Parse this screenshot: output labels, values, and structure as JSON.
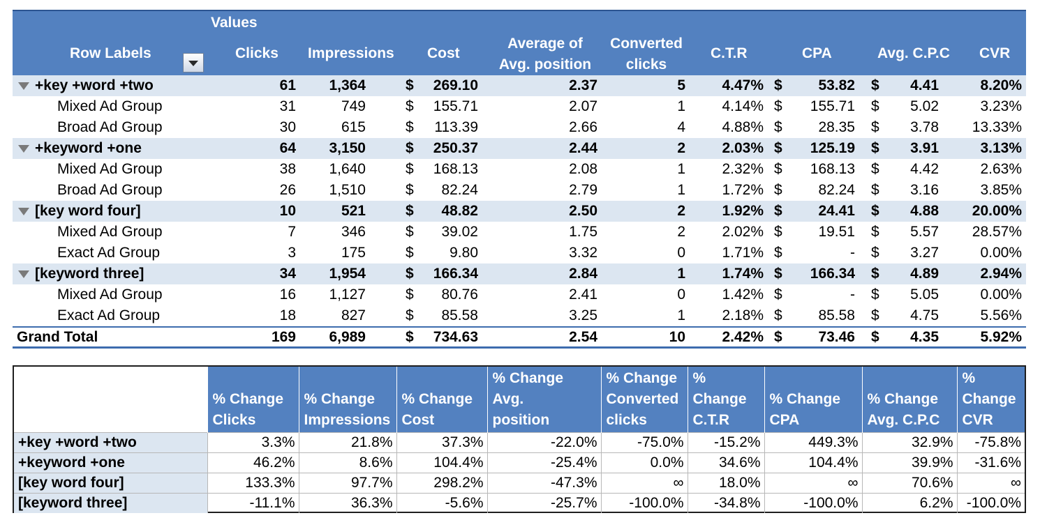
{
  "pivot": {
    "header": {
      "values_caption": "Values",
      "row_labels": "Row Labels",
      "clicks": "Clicks",
      "impressions": "Impressions",
      "cost": "Cost",
      "avg_pos_1": "Average of",
      "avg_pos_2": "Avg. position",
      "conv_1": "Converted",
      "conv_2": "clicks",
      "ctr": "C.T.R",
      "cpa": "CPA",
      "cpc": "Avg. C.P.C",
      "cvr": "CVR"
    },
    "currency": "$",
    "rows": [
      {
        "kind": "group",
        "label": "+key +word +two",
        "clicks": "61",
        "impressions": "1,364",
        "cost": "269.10",
        "avg_position": "2.37",
        "converted": "5",
        "ctr": "4.47%",
        "cpa": "53.82",
        "cpc": "4.41",
        "cvr": "8.20%"
      },
      {
        "kind": "child",
        "label": "Mixed Ad Group",
        "clicks": "31",
        "impressions": "749",
        "cost": "155.71",
        "avg_position": "2.07",
        "converted": "1",
        "ctr": "4.14%",
        "cpa": "155.71",
        "cpc": "5.02",
        "cvr": "3.23%"
      },
      {
        "kind": "child",
        "label": "Broad Ad Group",
        "clicks": "30",
        "impressions": "615",
        "cost": "113.39",
        "avg_position": "2.66",
        "converted": "4",
        "ctr": "4.88%",
        "cpa": "28.35",
        "cpc": "3.78",
        "cvr": "13.33%"
      },
      {
        "kind": "group",
        "label": "+keyword +one",
        "clicks": "64",
        "impressions": "3,150",
        "cost": "250.37",
        "avg_position": "2.44",
        "converted": "2",
        "ctr": "2.03%",
        "cpa": "125.19",
        "cpc": "3.91",
        "cvr": "3.13%"
      },
      {
        "kind": "child",
        "label": "Mixed Ad Group",
        "clicks": "38",
        "impressions": "1,640",
        "cost": "168.13",
        "avg_position": "2.08",
        "converted": "1",
        "ctr": "2.32%",
        "cpa": "168.13",
        "cpc": "4.42",
        "cvr": "2.63%"
      },
      {
        "kind": "child",
        "label": "Broad Ad Group",
        "clicks": "26",
        "impressions": "1,510",
        "cost": "82.24",
        "avg_position": "2.79",
        "converted": "1",
        "ctr": "1.72%",
        "cpa": "82.24",
        "cpc": "3.16",
        "cvr": "3.85%"
      },
      {
        "kind": "group",
        "label": "[key word four]",
        "clicks": "10",
        "impressions": "521",
        "cost": "48.82",
        "avg_position": "2.50",
        "converted": "2",
        "ctr": "1.92%",
        "cpa": "24.41",
        "cpc": "4.88",
        "cvr": "20.00%"
      },
      {
        "kind": "child",
        "label": "Mixed Ad Group",
        "clicks": "7",
        "impressions": "346",
        "cost": "39.02",
        "avg_position": "1.75",
        "converted": "2",
        "ctr": "2.02%",
        "cpa": "19.51",
        "cpc": "5.57",
        "cvr": "28.57%"
      },
      {
        "kind": "child",
        "label": "Exact Ad Group",
        "clicks": "3",
        "impressions": "175",
        "cost": "9.80",
        "avg_position": "3.32",
        "converted": "0",
        "ctr": "1.71%",
        "cpa": "-",
        "cpc": "3.27",
        "cvr": "0.00%"
      },
      {
        "kind": "group",
        "label": "[keyword three]",
        "clicks": "34",
        "impressions": "1,954",
        "cost": "166.34",
        "avg_position": "2.84",
        "converted": "1",
        "ctr": "1.74%",
        "cpa": "166.34",
        "cpc": "4.89",
        "cvr": "2.94%"
      },
      {
        "kind": "child",
        "label": "Mixed Ad Group",
        "clicks": "16",
        "impressions": "1,127",
        "cost": "80.76",
        "avg_position": "2.41",
        "converted": "0",
        "ctr": "1.42%",
        "cpa": "-",
        "cpc": "5.05",
        "cvr": "0.00%"
      },
      {
        "kind": "child",
        "label": "Exact Ad Group",
        "clicks": "18",
        "impressions": "827",
        "cost": "85.58",
        "avg_position": "3.25",
        "converted": "1",
        "ctr": "2.18%",
        "cpa": "85.58",
        "cpc": "4.75",
        "cvr": "5.56%"
      },
      {
        "kind": "total",
        "label": "Grand Total",
        "clicks": "169",
        "impressions": "6,989",
        "cost": "734.63",
        "avg_position": "2.54",
        "converted": "10",
        "ctr": "2.42%",
        "cpa": "73.46",
        "cpc": "4.35",
        "cvr": "5.92%"
      }
    ]
  },
  "change_table": {
    "headers": [
      [
        "% Change",
        "Clicks"
      ],
      [
        "% Change",
        "Impressions"
      ],
      [
        "% Change",
        "Cost"
      ],
      [
        "% Change Avg.",
        "position"
      ],
      [
        "% Change",
        "Converted",
        "clicks"
      ],
      [
        "% Change",
        "C.T.R"
      ],
      [
        "% Change",
        "CPA"
      ],
      [
        "% Change",
        "Avg. C.P.C"
      ],
      [
        "%",
        "Change",
        "CVR"
      ]
    ],
    "rows": [
      {
        "label": "+key +word +two",
        "values": [
          "3.3%",
          "21.8%",
          "37.3%",
          "-22.0%",
          "-75.0%",
          "-15.2%",
          "449.3%",
          "32.9%",
          "-75.8%"
        ]
      },
      {
        "label": "+keyword +one",
        "values": [
          "46.2%",
          "8.6%",
          "104.4%",
          "-25.4%",
          "0.0%",
          "34.6%",
          "104.4%",
          "39.9%",
          "-31.6%"
        ]
      },
      {
        "label": "[key word four]",
        "values": [
          "133.3%",
          "97.7%",
          "298.2%",
          "-47.3%",
          "∞",
          "18.0%",
          "∞",
          "70.6%",
          "∞"
        ]
      },
      {
        "label": "[keyword three]",
        "values": [
          "-11.1%",
          "36.3%",
          "-5.6%",
          "-25.7%",
          "-100.0%",
          "-34.8%",
          "-100.0%",
          "6.2%",
          "-100.0%"
        ]
      }
    ]
  },
  "colors": {
    "header_blue": "#5381c0",
    "group_row": "#dce6f1",
    "total_border": "#3d6cae"
  }
}
